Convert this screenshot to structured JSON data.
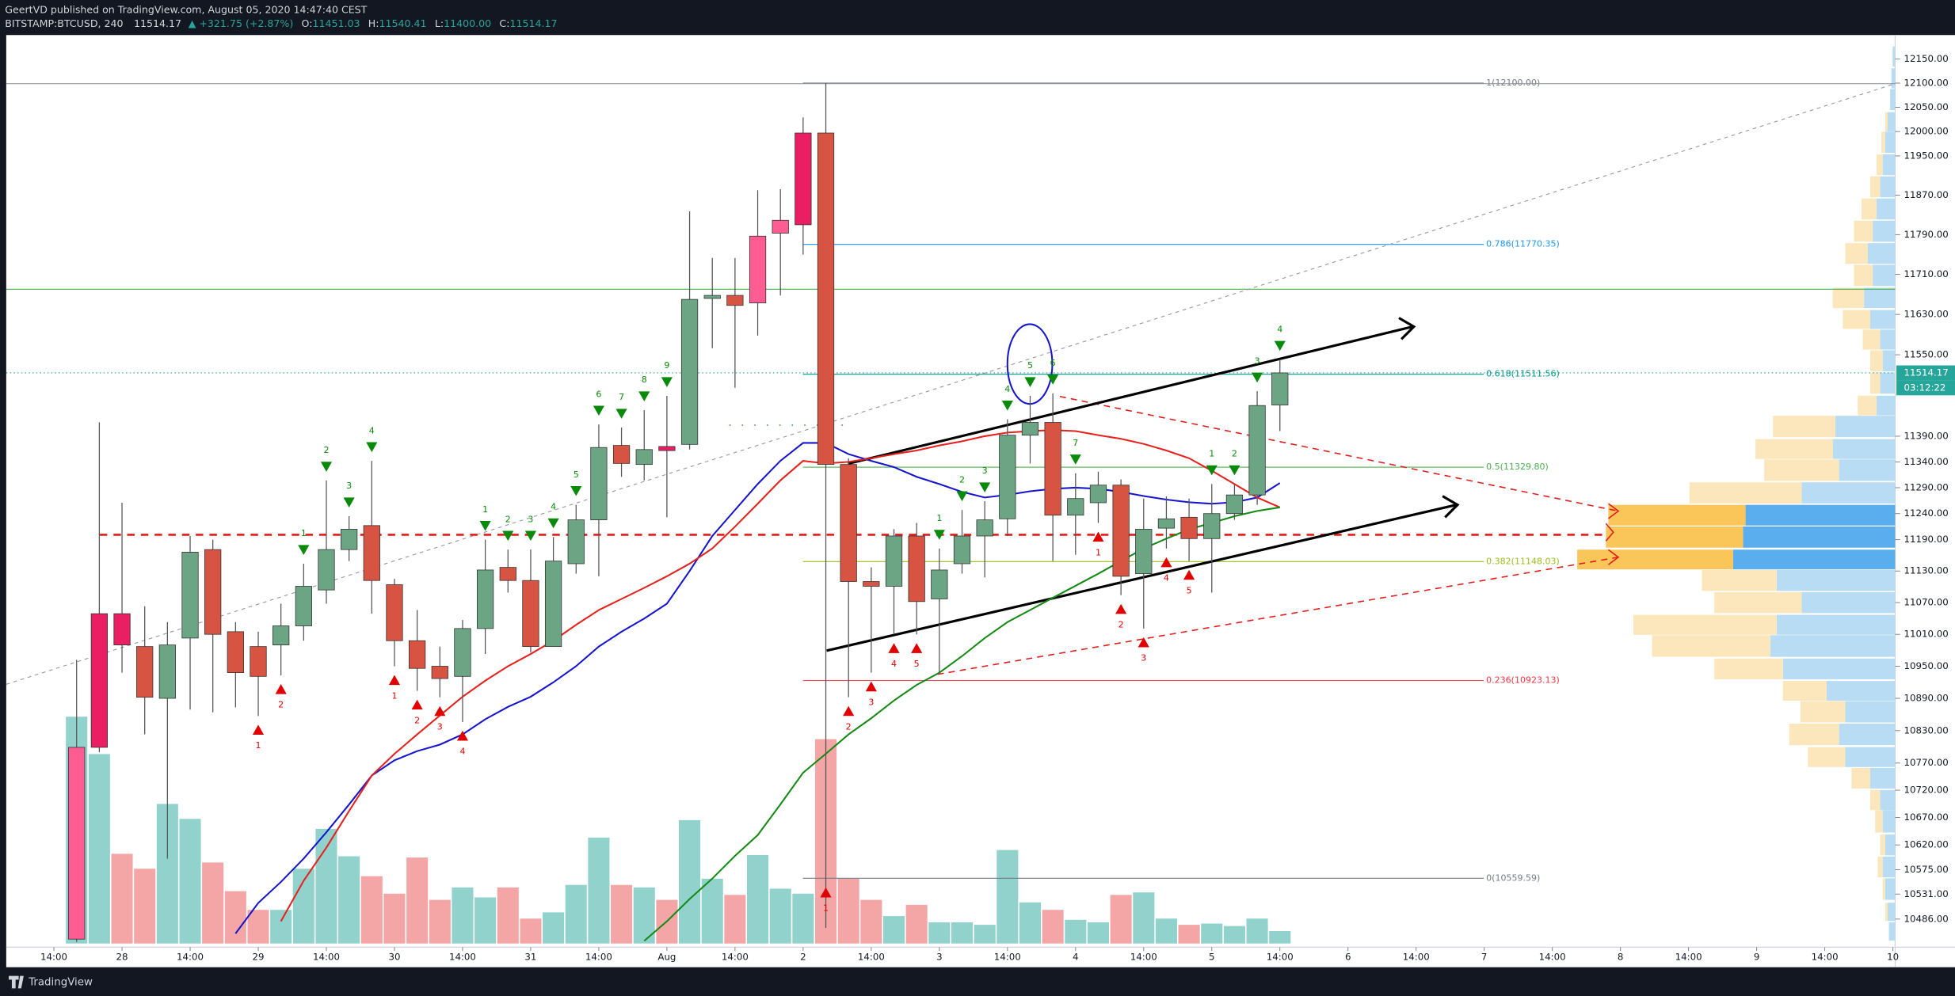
{
  "header": {
    "line1": "GeertVD published on TradingView.com, August 05, 2020 14:47:40 CEST",
    "symbol": "BITSTAMP:BTCUSD, 240",
    "change": "▲ +321.75 (+2.87%)",
    "ohlc": [
      [
        "O:",
        "11451.03"
      ],
      [
        "H:",
        "11540.41"
      ],
      [
        "L:",
        "11400.00"
      ],
      [
        "C:",
        "11514.17"
      ]
    ]
  },
  "footer": "TradingView",
  "countdown": "03:12:22",
  "chart_data": {
    "type": "candlestick",
    "log_scale": true,
    "ylim": [
      10440,
      12200
    ],
    "xlim": [
      -3.1,
      80.1
    ],
    "yticks": [
      {
        "value": 12150,
        "label": "12150.00"
      },
      {
        "value": 12100,
        "label": "12100.00"
      },
      {
        "value": 12050,
        "label": "12050.00"
      },
      {
        "value": 12000,
        "label": "12000.00"
      },
      {
        "value": 11950,
        "label": "11950.00"
      },
      {
        "value": 11870,
        "label": "11870.00"
      },
      {
        "value": 11790,
        "label": "11790.00"
      },
      {
        "value": 11710,
        "label": "11710.00"
      },
      {
        "value": 11630,
        "label": "11630.00"
      },
      {
        "value": 11550,
        "label": "11550.00"
      },
      {
        "value": 11390,
        "label": "11390.00"
      },
      {
        "value": 11340,
        "label": "11340.00"
      },
      {
        "value": 11290,
        "label": "11290.00"
      },
      {
        "value": 11240,
        "label": "11240.00"
      },
      {
        "value": 11190,
        "label": "11190.00"
      },
      {
        "value": 11130,
        "label": "11130.00"
      },
      {
        "value": 11070,
        "label": "11070.00"
      },
      {
        "value": 11010,
        "label": "11010.00"
      },
      {
        "value": 10950,
        "label": "10950.00"
      },
      {
        "value": 10890,
        "label": "10890.00"
      },
      {
        "value": 10830,
        "label": "10830.00"
      },
      {
        "value": 10770,
        "label": "10770.00"
      },
      {
        "value": 10720,
        "label": "10720.00"
      },
      {
        "value": 10670,
        "label": "10670.00"
      },
      {
        "value": 10620,
        "label": "10620.00"
      },
      {
        "value": 10575,
        "label": "10575.00"
      },
      {
        "value": 10531,
        "label": "10531.00"
      },
      {
        "value": 10486,
        "label": "10486.00"
      }
    ],
    "xticks": [
      {
        "value": -1,
        "label": "14:00"
      },
      {
        "value": 2,
        "label": "28"
      },
      {
        "value": 5,
        "label": "14:00"
      },
      {
        "value": 8,
        "label": "29"
      },
      {
        "value": 11,
        "label": "14:00"
      },
      {
        "value": 14,
        "label": "30"
      },
      {
        "value": 17,
        "label": "14:00"
      },
      {
        "value": 20,
        "label": "31"
      },
      {
        "value": 23,
        "label": "14:00"
      },
      {
        "value": 26,
        "label": "Aug"
      },
      {
        "value": 29,
        "label": "14:00"
      },
      {
        "value": 32,
        "label": "2"
      },
      {
        "value": 35,
        "label": "14:00"
      },
      {
        "value": 38,
        "label": "3"
      },
      {
        "value": 41,
        "label": "14:00"
      },
      {
        "value": 44,
        "label": "4"
      },
      {
        "value": 47,
        "label": "14:00"
      },
      {
        "value": 50,
        "label": "5"
      },
      {
        "value": 53,
        "label": "14:00"
      },
      {
        "value": 56,
        "label": "6"
      },
      {
        "value": 59,
        "label": "14:00"
      },
      {
        "value": 62,
        "label": "7"
      },
      {
        "value": 65,
        "label": "14:00"
      },
      {
        "value": 68,
        "label": "8"
      },
      {
        "value": 71,
        "label": "14:00"
      },
      {
        "value": 74,
        "label": "9"
      },
      {
        "value": 77,
        "label": "14:00"
      },
      {
        "value": 80,
        "label": "10"
      }
    ],
    "candles": [
      {
        "o": 10450,
        "h": 10962,
        "l": 10445,
        "c": 10799
      },
      {
        "o": 10799,
        "h": 11417,
        "l": 10790,
        "c": 11049
      },
      {
        "o": 11049,
        "h": 11261,
        "l": 10938,
        "c": 10990
      },
      {
        "o": 10987,
        "h": 11063,
        "l": 10823,
        "c": 10892
      },
      {
        "o": 10890,
        "h": 11033,
        "l": 10595,
        "c": 10990
      },
      {
        "o": 11003,
        "h": 11197,
        "l": 10869,
        "c": 11166
      },
      {
        "o": 11171,
        "h": 11190,
        "l": 10864,
        "c": 11010
      },
      {
        "o": 11015,
        "h": 11033,
        "l": 10873,
        "c": 10938
      },
      {
        "o": 10987,
        "h": 11015,
        "l": 10857,
        "c": 10931
      },
      {
        "o": 10990,
        "h": 11068,
        "l": 10933,
        "c": 11026
      },
      {
        "o": 11026,
        "h": 11144,
        "l": 10998,
        "c": 11101
      },
      {
        "o": 11094,
        "h": 11304,
        "l": 11068,
        "c": 11171
      },
      {
        "o": 11171,
        "h": 11235,
        "l": 11149,
        "c": 11210
      },
      {
        "o": 11217,
        "h": 11342,
        "l": 11049,
        "c": 11112
      },
      {
        "o": 11104,
        "h": 11115,
        "l": 10950,
        "c": 10998
      },
      {
        "o": 10998,
        "h": 11056,
        "l": 10904,
        "c": 10946
      },
      {
        "o": 10950,
        "h": 10987,
        "l": 10892,
        "c": 10927
      },
      {
        "o": 10931,
        "h": 11037,
        "l": 10846,
        "c": 11021
      },
      {
        "o": 11021,
        "h": 11190,
        "l": 10973,
        "c": 11132
      },
      {
        "o": 11137,
        "h": 11171,
        "l": 11089,
        "c": 11112
      },
      {
        "o": 11112,
        "h": 11171,
        "l": 10976,
        "c": 10987
      },
      {
        "o": 10987,
        "h": 11195,
        "l": 10987,
        "c": 11149
      },
      {
        "o": 11144,
        "h": 11257,
        "l": 11125,
        "c": 11228
      },
      {
        "o": 11228,
        "h": 11413,
        "l": 11120,
        "c": 11368
      },
      {
        "o": 11372,
        "h": 11407,
        "l": 11311,
        "c": 11337
      },
      {
        "o": 11335,
        "h": 11441,
        "l": 11304,
        "c": 11364
      },
      {
        "o": 11370,
        "h": 11469,
        "l": 11233,
        "c": 11362
      },
      {
        "o": 11374,
        "h": 11837,
        "l": 11364,
        "c": 11660
      },
      {
        "o": 11662,
        "h": 11743,
        "l": 11563,
        "c": 11668
      },
      {
        "o": 11668,
        "h": 11743,
        "l": 11485,
        "c": 11648
      },
      {
        "o": 11653,
        "h": 11880,
        "l": 11588,
        "c": 11787
      },
      {
        "o": 11793,
        "h": 11882,
        "l": 11668,
        "c": 11819
      },
      {
        "o": 11810,
        "h": 12029,
        "l": 11750,
        "c": 11997
      },
      {
        "o": 11997,
        "h": 12100,
        "l": 10470,
        "c": 11335
      },
      {
        "o": 11335,
        "h": 11347,
        "l": 10892,
        "c": 11110
      },
      {
        "o": 11110,
        "h": 11137,
        "l": 10938,
        "c": 11101
      },
      {
        "o": 11101,
        "h": 11210,
        "l": 11010,
        "c": 11197
      },
      {
        "o": 11197,
        "h": 11222,
        "l": 11010,
        "c": 11072
      },
      {
        "o": 11077,
        "h": 11173,
        "l": 10938,
        "c": 11132
      },
      {
        "o": 11144,
        "h": 11247,
        "l": 11125,
        "c": 11197
      },
      {
        "o": 11197,
        "h": 11264,
        "l": 11118,
        "c": 11228
      },
      {
        "o": 11230,
        "h": 11423,
        "l": 11197,
        "c": 11392
      },
      {
        "o": 11392,
        "h": 11469,
        "l": 11337,
        "c": 11417
      },
      {
        "o": 11417,
        "h": 11474,
        "l": 11149,
        "c": 11237
      },
      {
        "o": 11237,
        "h": 11318,
        "l": 11161,
        "c": 11269
      },
      {
        "o": 11261,
        "h": 11321,
        "l": 11222,
        "c": 11295
      },
      {
        "o": 11295,
        "h": 11306,
        "l": 11084,
        "c": 11120
      },
      {
        "o": 11125,
        "h": 11269,
        "l": 11021,
        "c": 11210
      },
      {
        "o": 11212,
        "h": 11273,
        "l": 11173,
        "c": 11230
      },
      {
        "o": 11233,
        "h": 11269,
        "l": 11149,
        "c": 11192
      },
      {
        "o": 11192,
        "h": 11297,
        "l": 11089,
        "c": 11240
      },
      {
        "o": 11240,
        "h": 11297,
        "l": 11228,
        "c": 11276
      },
      {
        "o": 11276,
        "h": 11478,
        "l": 11257,
        "c": 11450
      },
      {
        "o": 11451.03,
        "h": 11540.41,
        "l": 11400,
        "c": 11514.17
      }
    ],
    "colors": [
      "#ff5c93",
      "#e91e63",
      "#e91e63",
      "#d75442",
      "#6ba583",
      "#6ba583",
      "#d75442",
      "#d75442",
      "#d75442",
      "#6ba583",
      "#6ba583",
      "#6ba583",
      "#6ba583",
      "#d75442",
      "#d75442",
      "#d75442",
      "#d75442",
      "#6ba583",
      "#6ba583",
      "#d75442",
      "#d75442",
      "#6ba583",
      "#6ba583",
      "#6ba583",
      "#d75442",
      "#6ba583",
      "#e91e63",
      "#6ba583",
      "#6ba583",
      "#d75442",
      "#ff5c93",
      "#ff5c93",
      "#e91e63",
      "#d75442",
      "#d75442",
      "#d75442",
      "#6ba583",
      "#d75442",
      "#6ba583",
      "#6ba583",
      "#6ba583",
      "#6ba583",
      "#6ba583",
      "#d75442",
      "#6ba583",
      "#6ba583",
      "#d75442",
      "#6ba583",
      "#6ba583",
      "#d75442",
      "#6ba583",
      "#6ba583",
      "#6ba583",
      "#6ba583"
    ],
    "volume": [
      182,
      152,
      72,
      60,
      112,
      100,
      65,
      42,
      27,
      27,
      60,
      92,
      70,
      54,
      40,
      69,
      35,
      45,
      37,
      45,
      20,
      25,
      47,
      85,
      47,
      45,
      35,
      99,
      52,
      39,
      71,
      44,
      40,
      164,
      52,
      35,
      22,
      31,
      17,
      17,
      15,
      75,
      33,
      27,
      19,
      17,
      39,
      41,
      20,
      15,
      16,
      14,
      20,
      10
    ],
    "volume_up_color": "#92d2cc",
    "volume_down_color": "#f4a6a6",
    "moving_averages": [
      {
        "color": "#1515d0",
        "values": [
          null,
          null,
          null,
          null,
          null,
          null,
          null,
          10460,
          10515,
          10553,
          10595,
          10643,
          10694,
          10747,
          10775,
          10792,
          10804,
          10823,
          10851,
          10874,
          10893,
          10920,
          10950,
          10987,
          11015,
          11040,
          11068,
          11130,
          11197,
          11247,
          11297,
          11342,
          11377,
          11377,
          11355,
          11342,
          11330,
          11311,
          11297,
          11282,
          11271,
          11276,
          11283,
          11288,
          11290,
          11288,
          11282,
          11274,
          11267,
          11262,
          11259,
          11262,
          11271,
          11299
        ]
      },
      {
        "color": "#e8201c",
        "values": [
          null,
          null,
          null,
          null,
          null,
          null,
          null,
          null,
          null,
          10482,
          10555,
          10615,
          10682,
          10747,
          10787,
          10823,
          10858,
          10893,
          10923,
          10950,
          10973,
          10998,
          11028,
          11056,
          11077,
          11098,
          11120,
          11144,
          11173,
          11215,
          11259,
          11304,
          11342,
          11337,
          11340,
          11347,
          11355,
          11362,
          11372,
          11380,
          11390,
          11397,
          11400,
          11402,
          11400,
          11392,
          11385,
          11375,
          11362,
          11347,
          11323,
          11297,
          11271,
          11252
        ]
      },
      {
        "color": "#138a13",
        "values": [
          null,
          null,
          null,
          null,
          null,
          null,
          null,
          null,
          null,
          null,
          null,
          null,
          null,
          null,
          null,
          null,
          null,
          null,
          null,
          null,
          null,
          null,
          null,
          null,
          null,
          10447,
          10482,
          10522,
          10559,
          10600,
          10638,
          10694,
          10752,
          10787,
          10823,
          10853,
          10886,
          10915,
          10938,
          10969,
          11003,
          11033,
          11056,
          11079,
          11102,
          11125,
          11149,
          11173,
          11192,
          11210,
          11222,
          11235,
          11245,
          11252
        ]
      }
    ],
    "td_setups": [
      {
        "side": "above",
        "color": "#0a8a0a",
        "marks": [
          [
            10,
            1
          ],
          [
            11,
            2
          ],
          [
            12,
            3
          ],
          [
            13,
            4
          ],
          [
            18,
            1
          ],
          [
            19,
            2
          ],
          [
            20,
            3
          ],
          [
            21,
            4
          ],
          [
            22,
            5
          ],
          [
            23,
            6
          ],
          [
            24,
            7
          ],
          [
            25,
            8
          ],
          [
            26,
            9
          ],
          [
            38,
            1
          ],
          [
            39,
            2
          ],
          [
            40,
            3
          ],
          [
            41,
            4
          ],
          [
            42,
            5
          ],
          [
            43,
            6
          ],
          [
            44,
            7
          ],
          [
            50,
            1
          ],
          [
            51,
            2
          ],
          [
            52,
            3
          ],
          [
            53,
            4
          ]
        ]
      },
      {
        "side": "below",
        "color": "#e00000",
        "marks": [
          [
            8,
            1
          ],
          [
            9,
            2
          ],
          [
            14,
            1
          ],
          [
            15,
            2
          ],
          [
            16,
            3
          ],
          [
            17,
            4
          ],
          [
            33,
            1
          ],
          [
            34,
            2
          ],
          [
            35,
            3
          ],
          [
            36,
            4
          ],
          [
            37,
            5
          ],
          [
            45,
            1
          ],
          [
            46,
            2
          ],
          [
            47,
            3
          ],
          [
            48,
            4
          ],
          [
            49,
            5
          ]
        ]
      }
    ],
    "fib_levels": [
      {
        "label": "1(12100.00)",
        "value": 12100,
        "color": "#787b86"
      },
      {
        "label": "0.786(11770.35)",
        "value": 11770.35,
        "color": "#2196f3"
      },
      {
        "label": "0.618(11511.56)",
        "value": 11511.56,
        "color": "#009688"
      },
      {
        "label": "0.5(11329.80)",
        "value": 11329.8,
        "color": "#4caf50"
      },
      {
        "label": "0.382(11148.03)",
        "value": 11148.03,
        "color": "#9bbd1c"
      },
      {
        "label": "0.236(10923.13)",
        "value": 10923.13,
        "color": "#f23645"
      },
      {
        "label": "0(10559.59)",
        "value": 10559.59,
        "color": "#787b86"
      }
    ],
    "profile_colors": [
      "#b7dcf4",
      "#fce6bb",
      "#5aaeee",
      "#fbc659"
    ],
    "volume_profile": [
      [
        12155,
        2,
        0
      ],
      [
        12110,
        3,
        0
      ],
      [
        12066,
        4,
        0
      ],
      [
        12020,
        6,
        2
      ],
      [
        11978,
        8,
        3
      ],
      [
        11932,
        10,
        5
      ],
      [
        11887,
        12,
        8
      ],
      [
        11842,
        15,
        12
      ],
      [
        11797,
        18,
        15
      ],
      [
        11752,
        22,
        18
      ],
      [
        11708,
        18,
        15
      ],
      [
        11663,
        25,
        25
      ],
      [
        11620,
        20,
        22
      ],
      [
        11580,
        12,
        14
      ],
      [
        11538,
        10,
        10
      ],
      [
        11494,
        12,
        8
      ],
      [
        11450,
        15,
        15
      ],
      [
        11409,
        48,
        50
      ],
      [
        11365,
        50,
        62
      ],
      [
        11324,
        45,
        60
      ],
      [
        11280,
        75,
        90
      ],
      [
        11237,
        120,
        110
      ],
      [
        11195,
        122,
        110
      ],
      [
        11152,
        130,
        125
      ],
      [
        11112,
        95,
        60
      ],
      [
        11070,
        75,
        70
      ],
      [
        11028,
        95,
        115
      ],
      [
        10988,
        100,
        95
      ],
      [
        10945,
        90,
        55
      ],
      [
        10904,
        55,
        35
      ],
      [
        10865,
        40,
        36
      ],
      [
        10823,
        45,
        40
      ],
      [
        10781,
        40,
        30
      ],
      [
        10742,
        20,
        15
      ],
      [
        10702,
        12,
        8
      ],
      [
        10663,
        10,
        6
      ],
      [
        10620,
        8,
        4
      ],
      [
        10580,
        10,
        4
      ],
      [
        10540,
        8,
        2
      ],
      [
        10499,
        6,
        2
      ],
      [
        10464,
        5,
        0
      ]
    ]
  }
}
